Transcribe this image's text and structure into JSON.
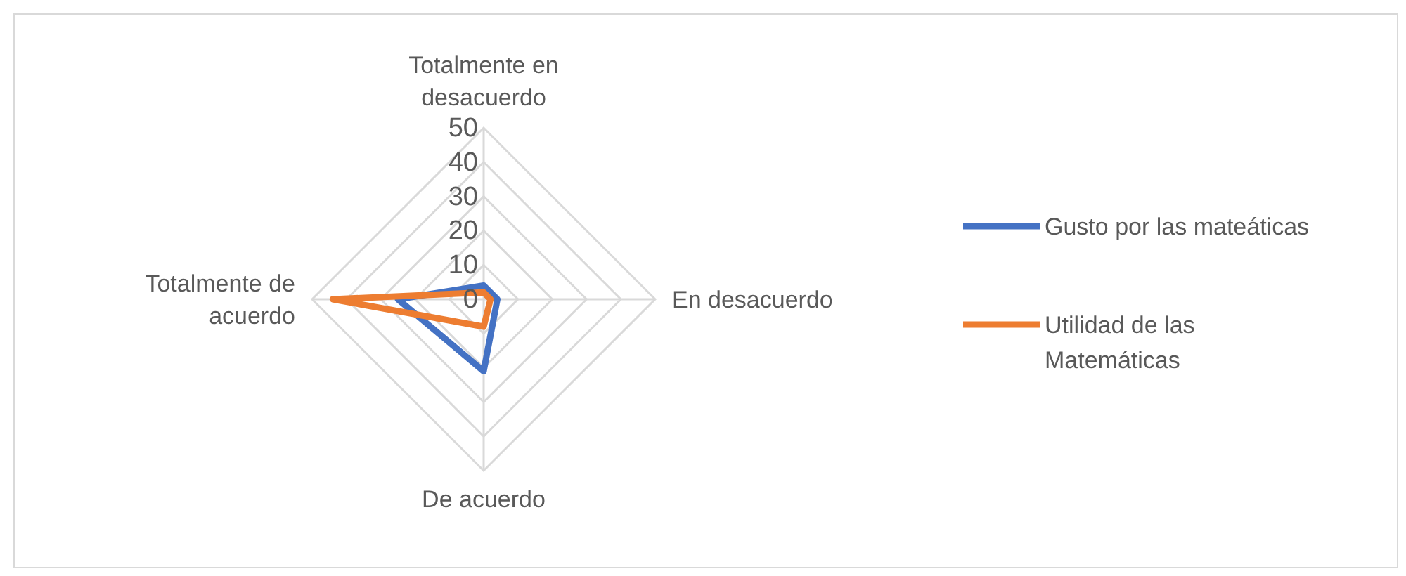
{
  "chart_data": {
    "type": "radar",
    "categories": [
      "Totalmente en desacuerdo",
      "En desacuerdo",
      "De acuerdo",
      "Totalmente de acuerdo"
    ],
    "series": [
      {
        "name": "Gusto por las mateáticas",
        "color": "#4472c4",
        "values": [
          4,
          4,
          21,
          25
        ]
      },
      {
        "name": "Utilidad de las Matemáticas",
        "color": "#ed7d31",
        "values": [
          2,
          2,
          8,
          44
        ]
      }
    ],
    "ylim": [
      0,
      50
    ],
    "yticks": [
      0,
      10,
      20,
      30,
      40,
      50
    ],
    "grid": true,
    "legend": "right"
  }
}
